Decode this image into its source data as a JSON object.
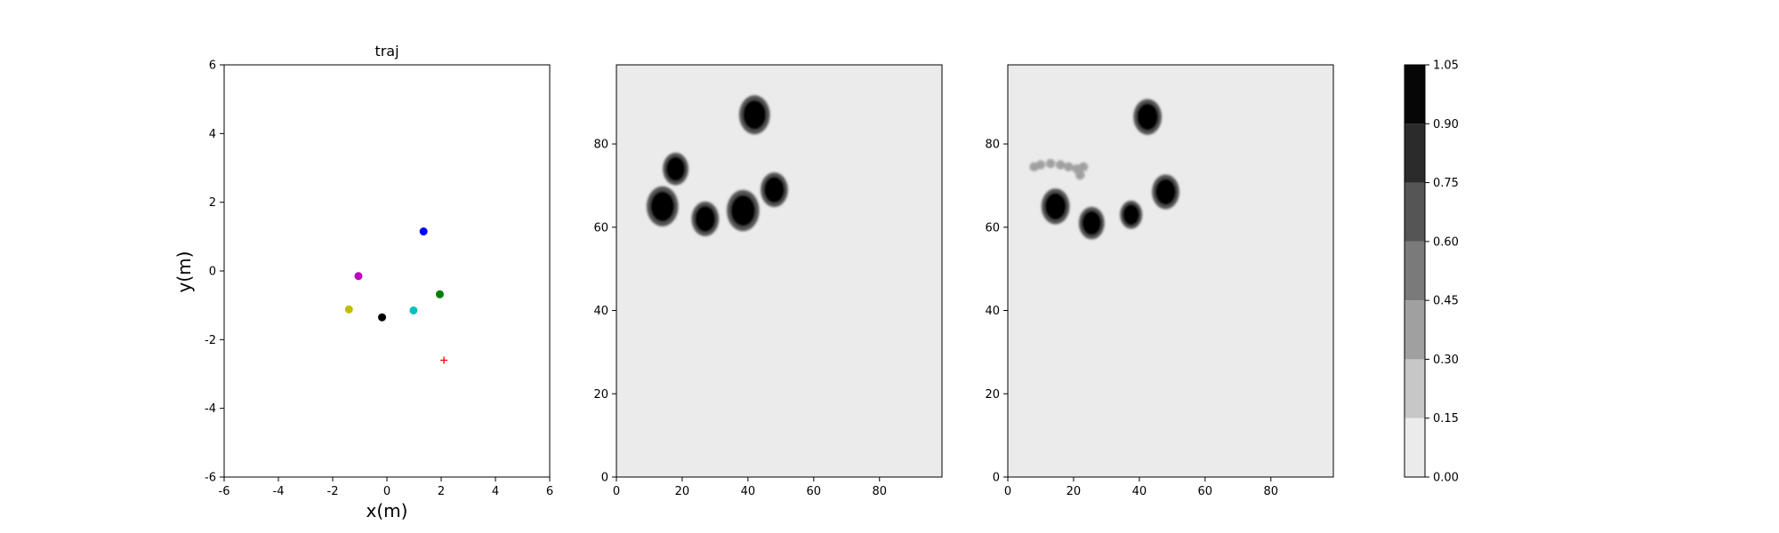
{
  "chart_data": [
    {
      "type": "scatter",
      "title": "traj",
      "xlabel": "x(m)",
      "ylabel": "y(m)",
      "xlim": [
        -6,
        6
      ],
      "ylim": [
        -6,
        6
      ],
      "xticks": [
        "-6",
        "-4",
        "-2",
        "0",
        "2",
        "4",
        "6"
      ],
      "yticks": [
        "-6",
        "-4",
        "-2",
        "0",
        "2",
        "4",
        "6"
      ],
      "grid": false,
      "series": [
        {
          "color": "#0000ff",
          "marker": "circle",
          "points": [
            [
              1.35,
              1.15
            ]
          ]
        },
        {
          "color": "#bf00bf",
          "marker": "circle",
          "points": [
            [
              -1.05,
              -0.15
            ]
          ]
        },
        {
          "color": "#008000",
          "marker": "circle",
          "points": [
            [
              1.95,
              -0.68
            ]
          ]
        },
        {
          "color": "#bfbf00",
          "marker": "circle",
          "points": [
            [
              -1.4,
              -1.12
            ]
          ]
        },
        {
          "color": "#00bfbf",
          "marker": "circle",
          "points": [
            [
              0.98,
              -1.15
            ]
          ]
        },
        {
          "color": "#000000",
          "marker": "circle",
          "points": [
            [
              -0.18,
              -1.35
            ]
          ]
        },
        {
          "color": "#ff0000",
          "marker": "plus",
          "points": [
            [
              2.1,
              -2.6
            ]
          ]
        }
      ]
    },
    {
      "type": "heatmap",
      "title": "",
      "xlabel": "",
      "ylabel": "",
      "xlim": [
        0,
        99
      ],
      "ylim": [
        0,
        99
      ],
      "xticks": [
        "0",
        "20",
        "40",
        "60",
        "80"
      ],
      "yticks": [
        "0",
        "20",
        "40",
        "60",
        "80"
      ],
      "background_level": 0.07,
      "blobs": [
        {
          "x": 42,
          "y": 87,
          "r": 3.6,
          "level": 1.0
        },
        {
          "x": 18,
          "y": 74,
          "r": 3.0,
          "level": 1.0
        },
        {
          "x": 14,
          "y": 65,
          "r": 3.7,
          "level": 1.0
        },
        {
          "x": 27,
          "y": 62,
          "r": 3.2,
          "level": 1.0
        },
        {
          "x": 38.5,
          "y": 64,
          "r": 3.8,
          "level": 1.0
        },
        {
          "x": 48,
          "y": 69,
          "r": 3.2,
          "level": 1.0
        }
      ]
    },
    {
      "type": "heatmap",
      "title": "",
      "xlabel": "",
      "ylabel": "",
      "xlim": [
        0,
        99
      ],
      "ylim": [
        0,
        99
      ],
      "xticks": [
        "0",
        "20",
        "40",
        "60",
        "80"
      ],
      "yticks": [
        "0",
        "20",
        "40",
        "60",
        "80"
      ],
      "background_level": 0.07,
      "blobs": [
        {
          "x": 42.5,
          "y": 86.5,
          "r": 3.3,
          "level": 1.0
        },
        {
          "x": 14.5,
          "y": 65,
          "r": 3.3,
          "level": 1.0
        },
        {
          "x": 25.5,
          "y": 61,
          "r": 3.0,
          "level": 1.0
        },
        {
          "x": 37.5,
          "y": 63,
          "r": 2.6,
          "level": 1.0
        },
        {
          "x": 48,
          "y": 68.5,
          "r": 3.2,
          "level": 1.0
        }
      ],
      "trail": [
        {
          "x": 8,
          "y": 74.5,
          "level": 0.3
        },
        {
          "x": 10,
          "y": 75,
          "level": 0.35
        },
        {
          "x": 13,
          "y": 75.3,
          "level": 0.4
        },
        {
          "x": 16,
          "y": 75,
          "level": 0.35
        },
        {
          "x": 18.5,
          "y": 74.5,
          "level": 0.3
        },
        {
          "x": 21,
          "y": 74,
          "level": 0.3
        },
        {
          "x": 22,
          "y": 72.5,
          "level": 0.4
        },
        {
          "x": 23,
          "y": 74.5,
          "level": 0.3
        }
      ]
    }
  ],
  "colorbar": {
    "ticks": [
      "0.00",
      "0.15",
      "0.30",
      "0.45",
      "0.60",
      "0.75",
      "0.90",
      "1.05"
    ],
    "levels": [
      0.0,
      0.15,
      0.3,
      0.45,
      0.6,
      0.75,
      0.9,
      1.05
    ],
    "colors": [
      "#ebebeb",
      "#c7c7c7",
      "#a0a0a0",
      "#7a7a7a",
      "#555555",
      "#2b2b2b",
      "#060606"
    ]
  }
}
